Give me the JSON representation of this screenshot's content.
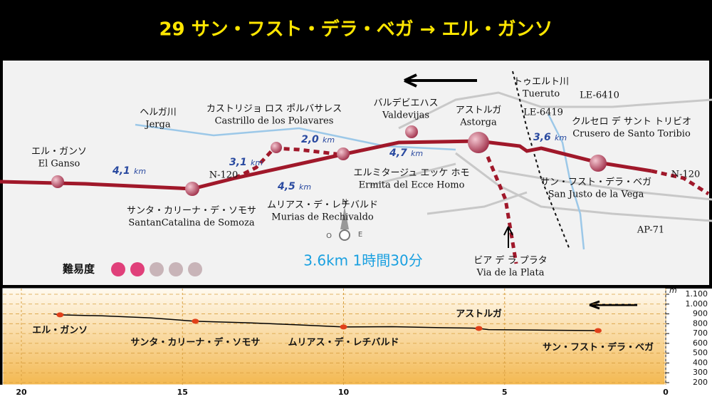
{
  "header": {
    "title": "29 サン・フスト・デラ・ベガ → エル・ガンソ"
  },
  "map": {
    "distance_unit": "km",
    "distances": [
      "4,1",
      "3,1",
      "2,0",
      "4,5",
      "4,7",
      "3,6"
    ],
    "places": [
      {
        "jp": "ヘルガ川",
        "en": "Jerga"
      },
      {
        "jp": "カストリジョ ロス ポルバサレス",
        "en": "Castrillo de los Polavares"
      },
      {
        "jp": "バルデビエハス",
        "en": "Valdevijas"
      },
      {
        "jp": "アストルガ",
        "en": "Astorga"
      },
      {
        "jp": "トゥエルト川",
        "en": "Tueruto"
      },
      {
        "jp": "クルセロ デ サント トリビオ",
        "en": "Crusero de Santo Toribio"
      },
      {
        "jp": "エル・ガンソ",
        "en": "El Ganso"
      },
      {
        "jp": "エルミタージュ エッケ ホモ",
        "en": "Ermita del Ecce Homo"
      },
      {
        "jp": "サン・フスト・デラ・ベガ",
        "en": "San Justo de la Vega"
      },
      {
        "jp": "サンタ・カリーナ・デ・ソモサ",
        "en": "SantanCatalina de Somoza"
      },
      {
        "jp": "ムリアス・デ・レチバルド",
        "en": "Murias de Rechivaldo"
      },
      {
        "jp": "ビア デ ラ プラタ",
        "en": "Via de la Plata"
      }
    ],
    "roads": [
      "LE-6410",
      "LE-6419",
      "N-120",
      "N-120",
      "AP-71"
    ],
    "compass": [
      "N",
      "O",
      "E"
    ],
    "stats": "3.6km 1時間30分",
    "difficulty": {
      "label": "難易度",
      "level": 2,
      "max": 5
    }
  },
  "chart_data": {
    "type": "line",
    "xlim": [
      20,
      0
    ],
    "xticks": [
      20,
      15,
      10,
      5,
      0
    ],
    "ylim": [
      200,
      1100
    ],
    "yticks": [
      200,
      300,
      400,
      500,
      600,
      700,
      800,
      900,
      {
        "value": 1000,
        "label": "1.000"
      },
      {
        "value": 1100,
        "label": "1.100"
      }
    ],
    "y_unit": "m",
    "grid": true,
    "series": [
      {
        "color": "#000000",
        "x": [
          19.0,
          18.8,
          17.5,
          16.0,
          14.6,
          13.0,
          11.5,
          10.0,
          8.5,
          7.0,
          6.0,
          5.8,
          5.5,
          4.0,
          2.1
        ],
        "values": [
          900,
          890,
          880,
          860,
          825,
          810,
          790,
          767,
          770,
          760,
          755,
          752,
          740,
          735,
          730
        ]
      },
      {
        "color": "#e0401a",
        "x": [
          18.8,
          14.6,
          10.0,
          5.8,
          2.1
        ],
        "values": [
          890,
          825,
          767,
          752,
          730
        ],
        "point_labels": [
          "エル・ガンソ",
          "サンタ・カリーナ・デ・ソモサ",
          "ムリアス・デ・レチバルド",
          "アストルガ",
          "サン・フスト・デラ・ベガ"
        ]
      }
    ]
  }
}
